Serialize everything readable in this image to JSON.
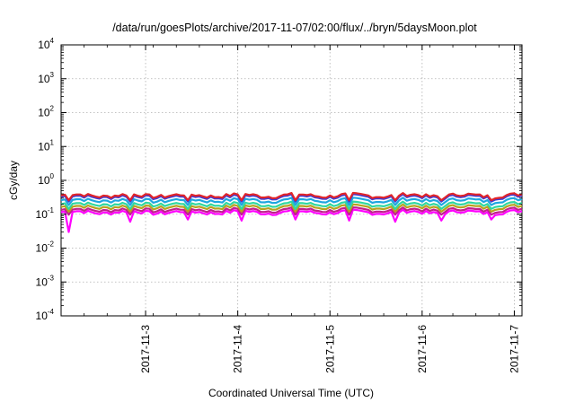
{
  "chart_data": {
    "type": "line",
    "title": "/data/run/goesPlots/archive/2017-11-07/02:00/flux/../bryn/5daysMoon.plot",
    "xlabel": "Coordinated Universal Time (UTC)",
    "ylabel": "cGy/day",
    "yscale": "log",
    "ylim": [
      0.0001,
      10000
    ],
    "yticks": [
      {
        "base": "10",
        "exp": "-4"
      },
      {
        "base": "10",
        "exp": "-3"
      },
      {
        "base": "10",
        "exp": "-2"
      },
      {
        "base": "10",
        "exp": "-1"
      },
      {
        "base": "10",
        "exp": "0"
      },
      {
        "base": "10",
        "exp": "1"
      },
      {
        "base": "10",
        "exp": "2"
      },
      {
        "base": "10",
        "exp": "3"
      },
      {
        "base": "10",
        "exp": "4"
      }
    ],
    "xlim": [
      "2017-11-02 02:00",
      "2017-11-07 02:00"
    ],
    "xticks": [
      "2017-11-3",
      "2017-11-4",
      "2017-11-5",
      "2017-11-6",
      "2017-11-7"
    ],
    "grid": true,
    "legend": "none",
    "series": [
      {
        "color": "#e0242a",
        "baseline": 0.36,
        "dips": [],
        "x": [
          "2017-11-02 02:00",
          "2017-11-07 02:00"
        ]
      },
      {
        "color": "#3b3bd6",
        "baseline": 0.33,
        "dips": []
      },
      {
        "color": "#1ea6e0",
        "baseline": 0.26,
        "dips": []
      },
      {
        "color": "#2fd8a0",
        "baseline": 0.2,
        "dips": []
      },
      {
        "color": "#b8a020",
        "baseline": 0.165,
        "dips": []
      },
      {
        "color": "#c0208c",
        "baseline": 0.135,
        "dips": []
      },
      {
        "color": "#ff00ff",
        "baseline": 0.115,
        "dips": [
          0.03,
          0.06,
          0.07,
          0.065,
          0.07,
          0.065,
          0.06,
          0.065,
          0.07
        ]
      }
    ]
  }
}
